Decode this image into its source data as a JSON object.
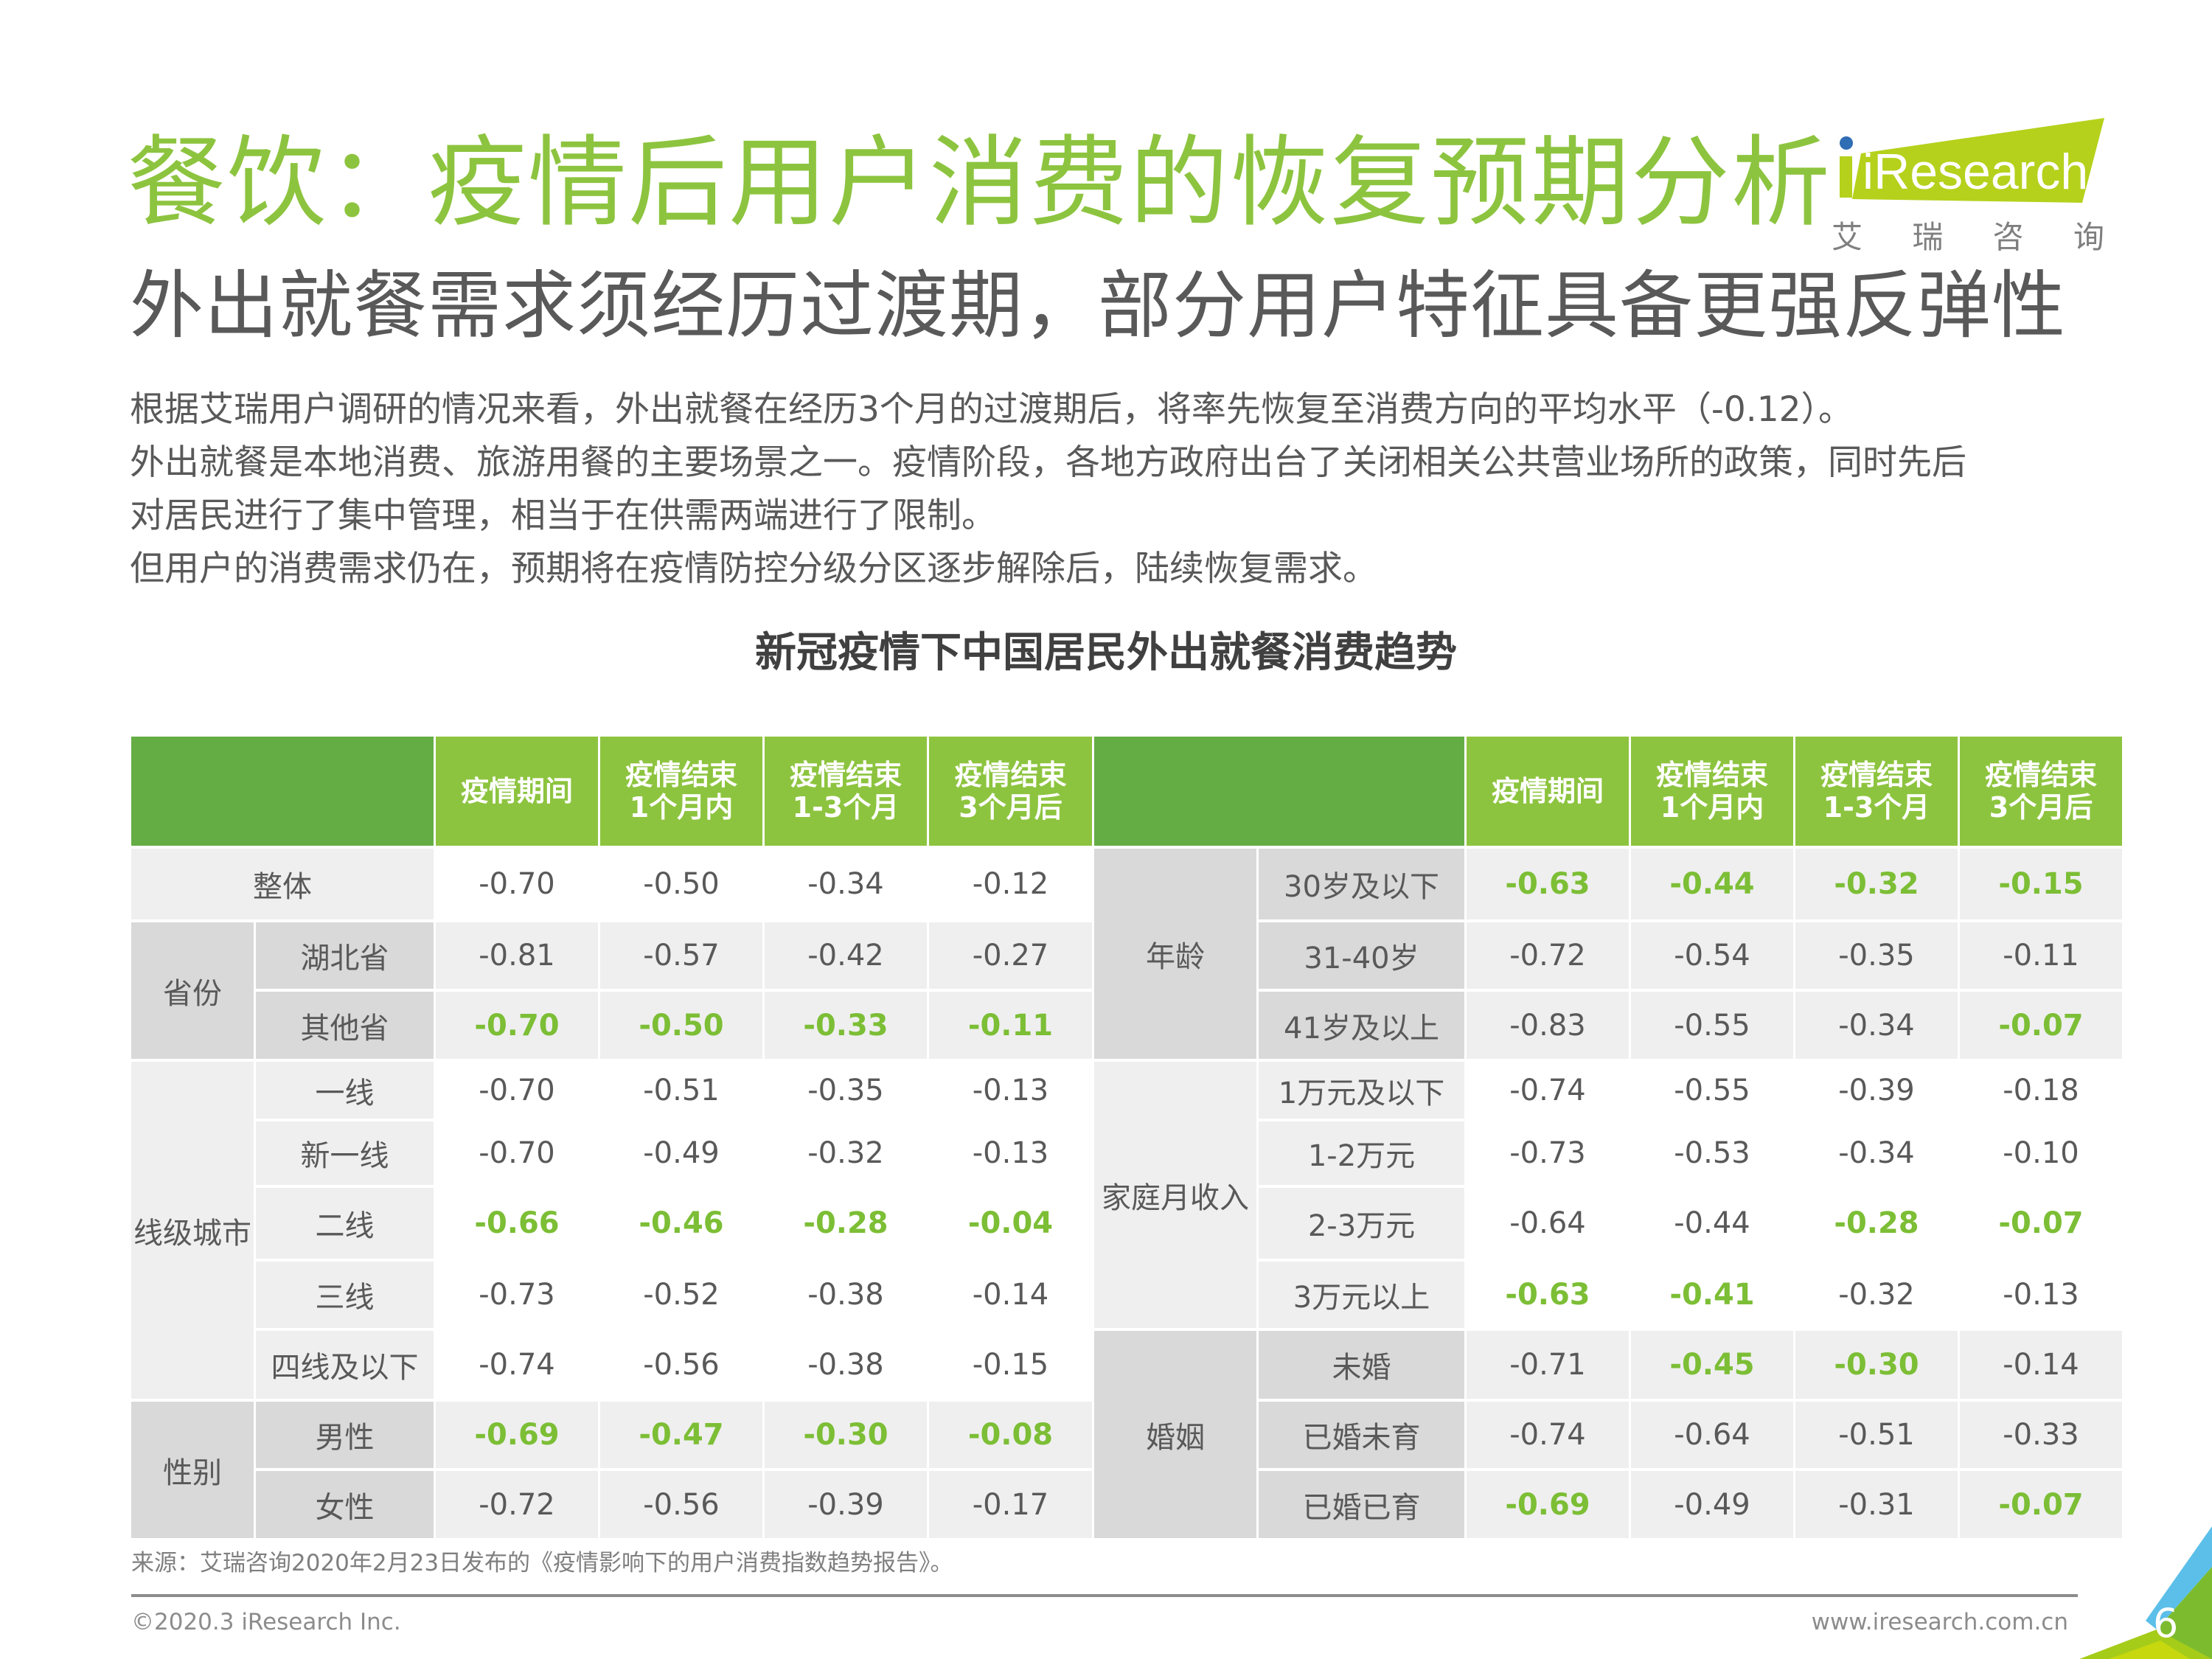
{
  "header": {
    "title": "餐饮：疫情后用户消费的恢复预期分析",
    "subtitle": "外出就餐需求须经历过渡期，部分用户特征具备更强反弹性",
    "logo_text": "iResearch",
    "logo_cn": [
      "艾",
      "瑞",
      "咨",
      "询"
    ]
  },
  "body": {
    "lines": [
      "根据艾瑞用户调研的情况来看，外出就餐在经历3个月的过渡期后，将率先恢复至消费方向的平均水平（-0.12）。",
      "外出就餐是本地消费、旅游用餐的主要场景之一。疫情阶段，各地方政府出台了关闭相关公共营业场所的政策，同时先后",
      "对居民进行了集中管理，相当于在供需两端进行了限制。",
      "但用户的消费需求仍在，预期将在疫情防控分级分区逐步解除后，陆续恢复需求。"
    ]
  },
  "table": {
    "title": "新冠疫情下中国居民外出就餐消费趋势",
    "columns": [
      "疫情期间",
      "疫情结束\n1个月内",
      "疫情结束\n1-3个月",
      "疫情结束\n3个月后"
    ],
    "left": {
      "overall": {
        "label": "整体",
        "values": [
          "-0.70",
          "-0.50",
          "-0.34",
          "-0.12"
        ],
        "hl": [
          false,
          false,
          false,
          false
        ]
      },
      "groups": [
        {
          "label": "省份",
          "rows": [
            {
              "label": "湖北省",
              "values": [
                "-0.81",
                "-0.57",
                "-0.42",
                "-0.27"
              ],
              "hl": [
                false,
                false,
                false,
                false
              ]
            },
            {
              "label": "其他省",
              "values": [
                "-0.70",
                "-0.50",
                "-0.33",
                "-0.11"
              ],
              "hl": [
                true,
                true,
                true,
                true
              ]
            }
          ]
        },
        {
          "label": "线级城市",
          "rows": [
            {
              "label": "一线",
              "values": [
                "-0.70",
                "-0.51",
                "-0.35",
                "-0.13"
              ],
              "hl": [
                false,
                false,
                false,
                false
              ]
            },
            {
              "label": "新一线",
              "values": [
                "-0.70",
                "-0.49",
                "-0.32",
                "-0.13"
              ],
              "hl": [
                false,
                false,
                false,
                false
              ]
            },
            {
              "label": "二线",
              "values": [
                "-0.66",
                "-0.46",
                "-0.28",
                "-0.04"
              ],
              "hl": [
                true,
                true,
                true,
                true
              ]
            },
            {
              "label": "三线",
              "values": [
                "-0.73",
                "-0.52",
                "-0.38",
                "-0.14"
              ],
              "hl": [
                false,
                false,
                false,
                false
              ]
            },
            {
              "label": "四线及以下",
              "values": [
                "-0.74",
                "-0.56",
                "-0.38",
                "-0.15"
              ],
              "hl": [
                false,
                false,
                false,
                false
              ]
            }
          ]
        },
        {
          "label": "性别",
          "rows": [
            {
              "label": "男性",
              "values": [
                "-0.69",
                "-0.47",
                "-0.30",
                "-0.08"
              ],
              "hl": [
                true,
                true,
                true,
                true
              ]
            },
            {
              "label": "女性",
              "values": [
                "-0.72",
                "-0.56",
                "-0.39",
                "-0.17"
              ],
              "hl": [
                false,
                false,
                false,
                false
              ]
            }
          ]
        }
      ]
    },
    "right": {
      "groups": [
        {
          "label": "年龄",
          "rows": [
            {
              "label": "30岁及以下",
              "values": [
                "-0.63",
                "-0.44",
                "-0.32",
                "-0.15"
              ],
              "hl": [
                true,
                true,
                true,
                true
              ]
            },
            {
              "label": "31-40岁",
              "values": [
                "-0.72",
                "-0.54",
                "-0.35",
                "-0.11"
              ],
              "hl": [
                false,
                false,
                false,
                false
              ]
            },
            {
              "label": "41岁及以上",
              "values": [
                "-0.83",
                "-0.55",
                "-0.34",
                "-0.07"
              ],
              "hl": [
                false,
                false,
                false,
                true
              ]
            }
          ]
        },
        {
          "label": "家庭月收入",
          "rows": [
            {
              "label": "1万元及以下",
              "values": [
                "-0.74",
                "-0.55",
                "-0.39",
                "-0.18"
              ],
              "hl": [
                false,
                false,
                false,
                false
              ]
            },
            {
              "label": "1-2万元",
              "values": [
                "-0.73",
                "-0.53",
                "-0.34",
                "-0.10"
              ],
              "hl": [
                false,
                false,
                false,
                false
              ]
            },
            {
              "label": "2-3万元",
              "values": [
                "-0.64",
                "-0.44",
                "-0.28",
                "-0.07"
              ],
              "hl": [
                false,
                false,
                true,
                true
              ]
            },
            {
              "label": "3万元以上",
              "values": [
                "-0.63",
                "-0.41",
                "-0.32",
                "-0.13"
              ],
              "hl": [
                true,
                true,
                false,
                false
              ]
            }
          ]
        },
        {
          "label": "婚姻",
          "rows": [
            {
              "label": "未婚",
              "values": [
                "-0.71",
                "-0.45",
                "-0.30",
                "-0.14"
              ],
              "hl": [
                false,
                true,
                true,
                false
              ]
            },
            {
              "label": "已婚未育",
              "values": [
                "-0.74",
                "-0.64",
                "-0.51",
                "-0.33"
              ],
              "hl": [
                false,
                false,
                false,
                false
              ]
            },
            {
              "label": "已婚已育",
              "values": [
                "-0.69",
                "-0.49",
                "-0.31",
                "-0.07"
              ],
              "hl": [
                true,
                false,
                false,
                true
              ]
            }
          ]
        }
      ]
    }
  },
  "footer": {
    "source": "来源：艾瑞咨询2020年2月23日发布的《疫情影响下的用户消费指数趋势报告》。",
    "copyright": "©2020.3 iResearch Inc.",
    "url": "www.iresearch.com.cn",
    "page_number": "6"
  },
  "colors": {
    "title_green": "#8dc43f",
    "header_dark_green": "#64ad45",
    "header_light_green": "#8dc43f",
    "highlight_green": "#7cbe35",
    "label_gray_dark": "#d9d9d9",
    "label_gray_light": "#efefef",
    "text_gray": "#595959"
  }
}
